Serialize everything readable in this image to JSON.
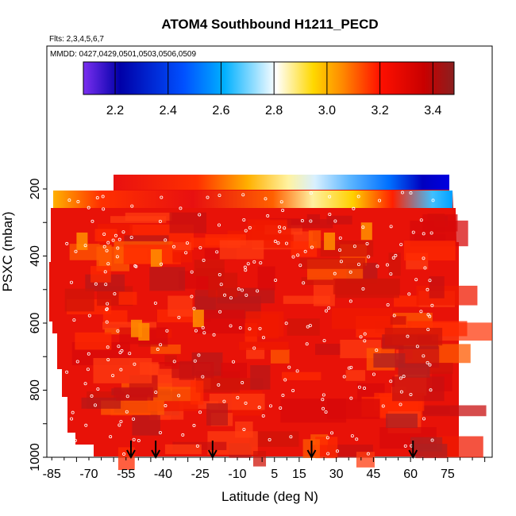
{
  "chart_data": {
    "type": "heatmap",
    "title": "ATOM4 Southbound H1211_PECD",
    "flights_text": "Flts: 2,3,4,5,6,7",
    "dates_text": "MMDD: 0427,0429,0501,0503,0506,0509",
    "xlabel": "Latitude (deg N)",
    "ylabel": "PSXC (mbar)",
    "x_ticks": [
      "-85",
      "-70",
      "-55",
      "-40",
      "-25",
      "-10",
      "5",
      "15",
      "30",
      "45",
      "60",
      "75"
    ],
    "y_ticks": [
      "200",
      "400",
      "600",
      "800",
      "1000"
    ],
    "xlim": [
      -87,
      93
    ],
    "ylim": [
      1020,
      20
    ],
    "colorbar": {
      "range": [
        2.08,
        3.48
      ],
      "ticks": [
        "2.2",
        "2.4",
        "2.6",
        "2.8",
        "3.0",
        "3.2",
        "3.4"
      ],
      "colors": [
        "#7a2ff0",
        "#0000a8",
        "#0050ff",
        "#00b0ff",
        "#ffffff",
        "#ffd800",
        "#ff8800",
        "#ff1000",
        "#c80000",
        "#8a1f1f"
      ]
    },
    "arrows_latitude": [
      -53,
      -43,
      -20,
      20,
      61
    ],
    "colors": {
      "main_field": "#e81208",
      "axis": "#000000"
    }
  }
}
